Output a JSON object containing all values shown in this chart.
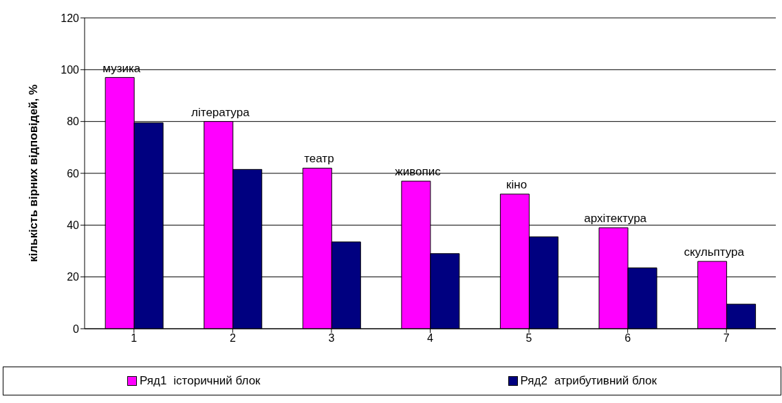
{
  "chart_data": {
    "type": "bar",
    "ylabel": "кількість вірних відповідей, %",
    "categories": [
      "1",
      "2",
      "3",
      "4",
      "5",
      "6",
      "7"
    ],
    "series": [
      {
        "name": "Ряд1",
        "color": "#ff00ff",
        "values": [
          97,
          80,
          62,
          57,
          52,
          39,
          26
        ]
      },
      {
        "name": "Ряд2",
        "color": "#000080",
        "values": [
          79.5,
          61.5,
          33.5,
          29,
          35.5,
          23.5,
          9.5
        ]
      }
    ],
    "ylim": [
      0,
      120
    ],
    "yticks": [
      0,
      20,
      40,
      60,
      80,
      100,
      120
    ],
    "grid": "y",
    "legend": "bottom",
    "annotations": [
      {
        "text": "музика",
        "x": "1",
        "y": 97
      },
      {
        "text": "література",
        "x": "2",
        "y": 80
      },
      {
        "text": "театр",
        "x": "3",
        "y": 62
      },
      {
        "text": "живопис",
        "x": "4",
        "y": 57
      },
      {
        "text": "кіно",
        "x": "5",
        "y": 52
      },
      {
        "text": "архітектура",
        "x": "6",
        "y": 39
      },
      {
        "text": "скульптура",
        "x": "7",
        "y": 26
      },
      "історичний блок",
      "атрибутивний блок"
    ]
  }
}
